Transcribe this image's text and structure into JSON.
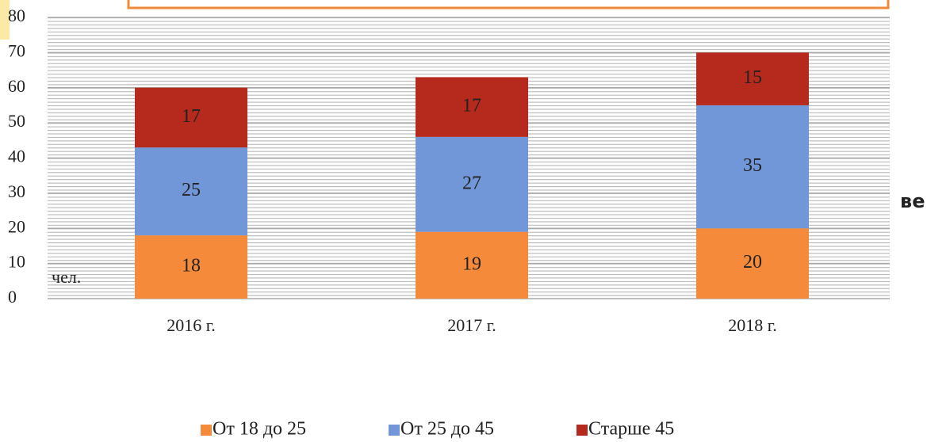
{
  "chart_data": {
    "type": "stacked_bar",
    "categories": [
      "2016 г.",
      "2017 г.",
      "2018 г."
    ],
    "series": [
      {
        "name": "От 18 до 25",
        "color": "#f58b3a",
        "values": [
          18,
          19,
          20
        ]
      },
      {
        "name": "От 25 до 45",
        "color": "#7297d8",
        "values": [
          25,
          27,
          35
        ]
      },
      {
        "name": "Старше 45",
        "color": "#b52a1c",
        "values": [
          17,
          17,
          15
        ]
      }
    ],
    "ylim": [
      0,
      80
    ],
    "yticks": [
      0,
      10,
      20,
      30,
      40,
      50,
      60,
      70,
      80
    ],
    "grid": true,
    "y_axis_label": "чел.",
    "annotation": "ве",
    "legend": "bottom"
  }
}
